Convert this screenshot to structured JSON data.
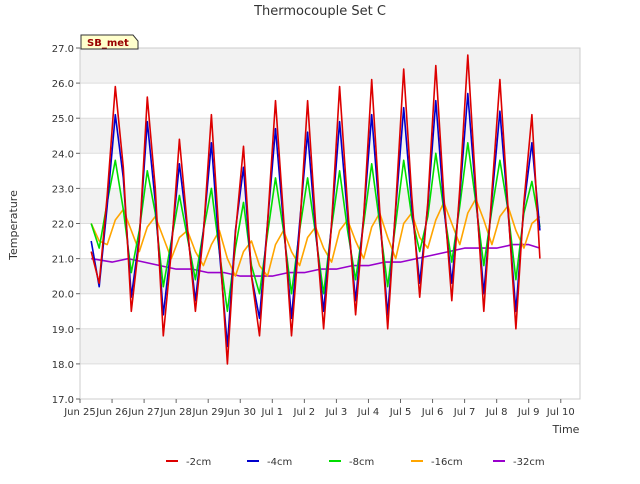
{
  "chart_data": {
    "type": "line",
    "title": "Thermocouple Set C",
    "xlabel": "Time",
    "ylabel": "Temperature",
    "ylim": [
      17.0,
      27.0
    ],
    "xlim_day": [
      0,
      15.6
    ],
    "y_ticks": [
      "17.0",
      "18.0",
      "19.0",
      "20.0",
      "21.0",
      "22.0",
      "23.0",
      "24.0",
      "25.0",
      "26.0",
      "27.0"
    ],
    "x_ticks": [
      {
        "day": 0,
        "label": "Jun 25"
      },
      {
        "day": 1,
        "label": "Jun 26"
      },
      {
        "day": 2,
        "label": "Jun 27"
      },
      {
        "day": 3,
        "label": "Jun 28"
      },
      {
        "day": 4,
        "label": "Jun 29"
      },
      {
        "day": 5,
        "label": "Jun 30"
      },
      {
        "day": 6,
        "label": "Jul 1"
      },
      {
        "day": 7,
        "label": "Jul 2"
      },
      {
        "day": 8,
        "label": "Jul 3"
      },
      {
        "day": 9,
        "label": "Jul 4"
      },
      {
        "day": 10,
        "label": "Jul 5"
      },
      {
        "day": 11,
        "label": "Jul 6"
      },
      {
        "day": 12,
        "label": "Jul 7"
      },
      {
        "day": 13,
        "label": "Jul 8"
      },
      {
        "day": 14,
        "label": "Jul 9"
      },
      {
        "day": 15,
        "label": "Jul 10"
      }
    ],
    "site_label": "SB_met",
    "grid": true,
    "legend_position": "bottom",
    "series": [
      {
        "name": "-2cm",
        "color": "#dd0000",
        "x": [
          0.35,
          0.6,
          0.85,
          1.1,
          1.35,
          1.6,
          1.85,
          2.1,
          2.35,
          2.6,
          2.85,
          3.1,
          3.35,
          3.6,
          3.85,
          4.1,
          4.35,
          4.6,
          4.85,
          5.1,
          5.35,
          5.6,
          5.85,
          6.1,
          6.35,
          6.6,
          6.85,
          7.1,
          7.35,
          7.6,
          7.85,
          8.1,
          8.35,
          8.6,
          8.85,
          9.1,
          9.35,
          9.6,
          9.85,
          10.1,
          10.35,
          10.6,
          10.85,
          11.1,
          11.35,
          11.6,
          11.85,
          12.1,
          12.35,
          12.6,
          12.85,
          13.1,
          13.35,
          13.6,
          13.85,
          14.1,
          14.35,
          14.6,
          14.85,
          15.1,
          15.35,
          15.6
        ],
        "y": [
          21.2,
          20.3,
          22.8,
          25.9,
          23.6,
          19.5,
          21.5,
          25.6,
          23.0,
          18.8,
          21.2,
          24.4,
          21.9,
          19.5,
          21.7,
          25.1,
          21.5,
          18.0,
          21.7,
          24.2,
          20.5,
          18.8,
          22.0,
          25.5,
          22.2,
          18.8,
          21.8,
          25.5,
          22.0,
          19.0,
          22.0,
          25.9,
          22.5,
          19.4,
          22.2,
          26.1,
          22.4,
          19.0,
          22.5,
          26.4,
          22.8,
          19.9,
          22.6,
          26.5,
          22.8,
          19.8,
          23.0,
          26.8,
          23.0,
          19.5,
          22.9,
          26.1,
          22.5,
          19.0,
          22.6,
          25.1,
          21.0,
          null,
          null,
          null,
          null,
          null
        ],
        "note": ""
      },
      {
        "name": "-4cm",
        "color": "#0000cc",
        "x": [
          0.35,
          0.6,
          0.85,
          1.1,
          1.35,
          1.6,
          1.85,
          2.1,
          2.35,
          2.6,
          2.85,
          3.1,
          3.35,
          3.6,
          3.85,
          4.1,
          4.35,
          4.6,
          4.85,
          5.1,
          5.35,
          5.6,
          5.85,
          6.1,
          6.35,
          6.6,
          6.85,
          7.1,
          7.35,
          7.6,
          7.85,
          8.1,
          8.35,
          8.6,
          8.85,
          9.1,
          9.35,
          9.6,
          9.85,
          10.1,
          10.35,
          10.6,
          10.85,
          11.1,
          11.35,
          11.6,
          11.85,
          12.1,
          12.35,
          12.6,
          12.85,
          13.1,
          13.35,
          13.6,
          13.85,
          14.1,
          14.35
        ],
        "y": [
          21.5,
          20.2,
          22.5,
          25.1,
          23.3,
          19.9,
          21.6,
          24.9,
          22.6,
          19.4,
          21.4,
          23.7,
          21.8,
          19.8,
          21.8,
          24.3,
          21.2,
          18.5,
          21.8,
          23.6,
          20.5,
          19.3,
          22.0,
          24.7,
          22.0,
          19.3,
          22.0,
          24.6,
          21.8,
          19.5,
          22.0,
          24.9,
          22.2,
          19.8,
          22.2,
          25.1,
          22.2,
          19.4,
          22.4,
          25.3,
          22.5,
          20.3,
          22.5,
          25.5,
          22.5,
          20.3,
          22.8,
          25.7,
          22.8,
          20.0,
          22.7,
          25.2,
          22.4,
          19.5,
          22.5,
          24.3,
          21.8
        ],
        "note": ""
      },
      {
        "name": "-8cm",
        "color": "#00dd00",
        "x": [
          0.35,
          0.6,
          0.85,
          1.1,
          1.35,
          1.6,
          1.85,
          2.1,
          2.35,
          2.6,
          2.85,
          3.1,
          3.35,
          3.6,
          3.85,
          4.1,
          4.35,
          4.6,
          4.85,
          5.1,
          5.35,
          5.6,
          5.85,
          6.1,
          6.35,
          6.6,
          6.85,
          7.1,
          7.35,
          7.6,
          7.85,
          8.1,
          8.35,
          8.6,
          8.85,
          9.1,
          9.35,
          9.6,
          9.85,
          10.1,
          10.35,
          10.6,
          10.85,
          11.1,
          11.35,
          11.6,
          11.85,
          12.1,
          12.35,
          12.6,
          12.85,
          13.1,
          13.35,
          13.6,
          13.85,
          14.1,
          14.35
        ],
        "y": [
          22.0,
          21.3,
          22.6,
          23.8,
          22.4,
          20.6,
          21.8,
          23.5,
          22.3,
          20.2,
          21.5,
          22.8,
          21.6,
          20.4,
          21.8,
          23.0,
          21.2,
          19.5,
          21.3,
          22.6,
          20.8,
          20.0,
          21.7,
          23.3,
          21.8,
          20.0,
          21.8,
          23.3,
          21.7,
          20.0,
          21.9,
          23.5,
          21.8,
          20.4,
          22.0,
          23.7,
          22.0,
          20.2,
          22.0,
          23.8,
          22.2,
          21.2,
          22.2,
          24.0,
          22.4,
          20.9,
          22.5,
          24.3,
          22.6,
          20.8,
          22.4,
          23.8,
          22.4,
          20.4,
          22.3,
          23.2,
          21.9
        ],
        "note": ""
      },
      {
        "name": "-16cm",
        "color": "#ffa500",
        "x": [
          0.35,
          0.6,
          0.85,
          1.1,
          1.35,
          1.6,
          1.85,
          2.1,
          2.35,
          2.6,
          2.85,
          3.1,
          3.35,
          3.6,
          3.85,
          4.1,
          4.35,
          4.6,
          4.85,
          5.1,
          5.35,
          5.6,
          5.85,
          6.1,
          6.35,
          6.6,
          6.85,
          7.1,
          7.35,
          7.6,
          7.85,
          8.1,
          8.35,
          8.6,
          8.85,
          9.1,
          9.35,
          9.6,
          9.85,
          10.1,
          10.35,
          10.6,
          10.85,
          11.1,
          11.35,
          11.6,
          11.85,
          12.1,
          12.35,
          12.6,
          12.85,
          13.1,
          13.35,
          13.6,
          13.85,
          14.1,
          14.35
        ],
        "y": [
          22.0,
          21.5,
          21.4,
          22.1,
          22.4,
          21.8,
          21.2,
          21.9,
          22.2,
          21.6,
          21.0,
          21.6,
          21.8,
          21.2,
          20.8,
          21.4,
          21.8,
          21.0,
          20.5,
          21.2,
          21.5,
          20.8,
          20.5,
          21.4,
          21.8,
          21.2,
          20.8,
          21.6,
          21.9,
          21.3,
          20.9,
          21.8,
          22.1,
          21.5,
          21.0,
          21.9,
          22.3,
          21.6,
          21.0,
          22.0,
          22.3,
          21.6,
          21.3,
          22.1,
          22.6,
          22.0,
          21.4,
          22.3,
          22.7,
          22.1,
          21.4,
          22.2,
          22.5,
          21.8,
          21.3,
          22.0,
          22.2
        ],
        "note": ""
      },
      {
        "name": "-32cm",
        "color": "#9900cc",
        "x": [
          0.35,
          1.0,
          1.5,
          2.0,
          2.5,
          3.0,
          3.5,
          4.0,
          4.5,
          5.0,
          5.5,
          6.0,
          6.5,
          7.0,
          7.5,
          8.0,
          8.5,
          9.0,
          9.5,
          10.0,
          10.5,
          11.0,
          11.5,
          12.0,
          12.5,
          13.0,
          13.5,
          14.0,
          14.35
        ],
        "y": [
          21.0,
          20.9,
          21.0,
          20.9,
          20.8,
          20.7,
          20.7,
          20.6,
          20.6,
          20.5,
          20.5,
          20.5,
          20.6,
          20.6,
          20.7,
          20.7,
          20.8,
          20.8,
          20.9,
          20.9,
          21.0,
          21.1,
          21.2,
          21.3,
          21.3,
          21.3,
          21.4,
          21.4,
          21.3
        ],
        "note": ""
      }
    ]
  }
}
